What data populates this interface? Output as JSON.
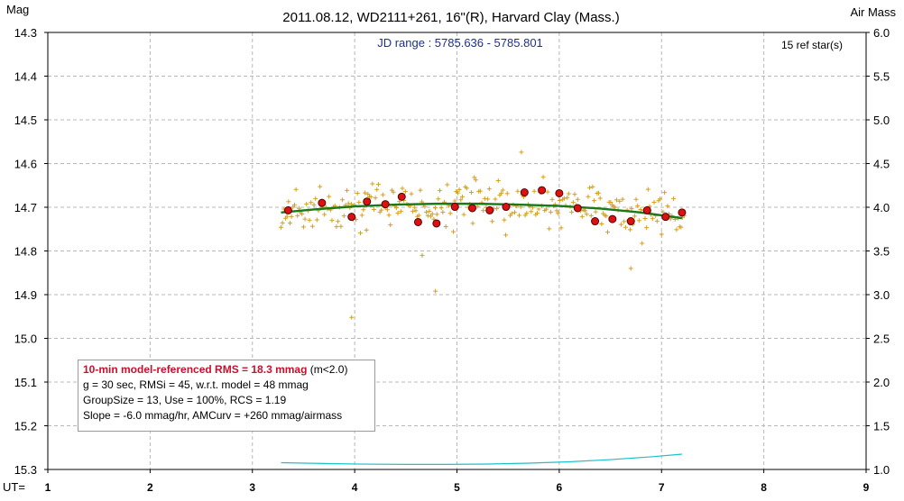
{
  "chart_data": {
    "type": "scatter",
    "title": "2011.08.12, WD2111+261, 16\"(R), Harvard Clay (Mass.)",
    "ylabel_left": "Mag",
    "ylabel_right": "Air Mass",
    "xlabel": "UT=",
    "jd_range": "JD range : 5785.636 - 5785.801",
    "ref_stars": "15 ref star(s)",
    "xlim": [
      1,
      9
    ],
    "ylim_left": [
      14.3,
      15.3
    ],
    "ylim_right": [
      1.0,
      6.0
    ],
    "y_inverted": true,
    "grid": true,
    "x_ticks": [
      "1",
      "2",
      "3",
      "4",
      "5",
      "6",
      "7",
      "8",
      "9"
    ],
    "y_left_ticks": [
      "14.3",
      "14.4",
      "14.5",
      "14.6",
      "14.7",
      "14.8",
      "14.9",
      "15.0",
      "15.1",
      "15.2",
      "15.3"
    ],
    "y_right_ticks": [
      "6.0",
      "5.5",
      "5.0",
      "4.5",
      "4.0",
      "3.5",
      "3.0",
      "2.5",
      "2.0",
      "1.5",
      "1.0"
    ],
    "colors": {
      "raw": "#d4a020",
      "binned_fill": "#dd1111",
      "binned_stroke": "#550000",
      "model": "#1a7a1a",
      "airmass": "#20c0c8",
      "grid": "#b8b8b8"
    },
    "series": [
      {
        "name": "binned",
        "x": [
          3.35,
          3.68,
          3.97,
          4.12,
          4.3,
          4.46,
          4.62,
          4.8,
          4.98,
          5.15,
          5.32,
          5.48,
          5.66,
          5.83,
          6.0,
          6.18,
          6.35,
          6.52,
          6.7,
          6.86,
          7.04,
          7.2
        ],
        "y": [
          14.707,
          14.69,
          14.722,
          14.687,
          14.693,
          14.676,
          14.734,
          14.737,
          14.699,
          14.702,
          14.707,
          14.699,
          14.666,
          14.661,
          14.668,
          14.702,
          14.732,
          14.727,
          14.732,
          14.707,
          14.722,
          14.712
        ]
      },
      {
        "name": "model",
        "x": [
          3.28,
          3.6,
          4.0,
          4.4,
          4.8,
          5.2,
          5.6,
          6.0,
          6.4,
          6.8,
          7.2
        ],
        "y": [
          14.712,
          14.705,
          14.698,
          14.694,
          14.692,
          14.692,
          14.694,
          14.697,
          14.703,
          14.712,
          14.725
        ]
      },
      {
        "name": "airmass",
        "x": [
          3.28,
          3.7,
          4.1,
          4.5,
          4.9,
          5.3,
          5.7,
          6.1,
          6.5,
          6.9,
          7.2
        ],
        "y": [
          1.077,
          1.068,
          1.061,
          1.058,
          1.058,
          1.062,
          1.072,
          1.088,
          1.113,
          1.145,
          1.175
        ]
      }
    ]
  },
  "stats": {
    "line1_highlight": "10-min model-referenced RMS = 18.3 mmag",
    "line1_suffix": " (m<2.0)",
    "line2": "g = 30 sec, RMSi = 45, w.r.t. model = 48 mmag",
    "line3": "GroupSize = 13, Use = 100%, RCS = 1.19",
    "line4": "Slope = -6.0 mmag/hr, AMCurv = +260 mmag/airmass"
  }
}
